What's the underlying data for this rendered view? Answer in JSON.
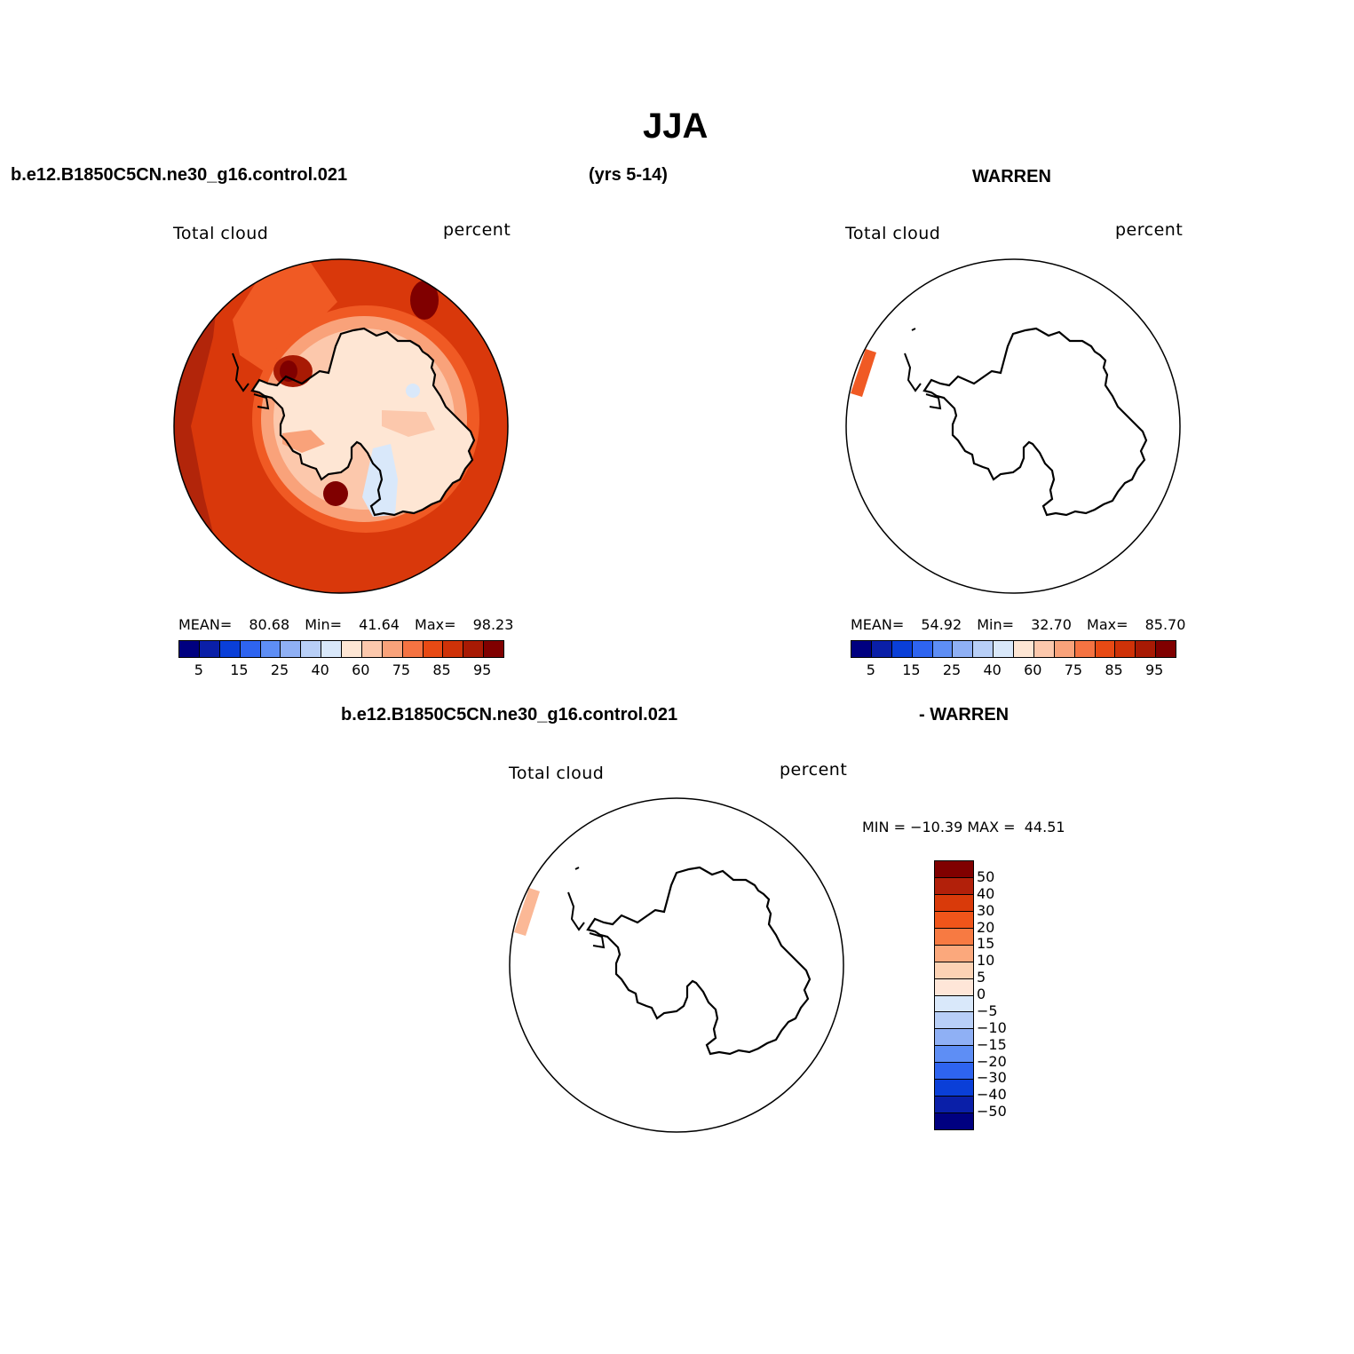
{
  "title": "JJA",
  "header": {
    "case": "b.e12.B1850C5CN.ne30_g16.control.021",
    "years": "(yrs 5-14)",
    "obs": "WARREN"
  },
  "panels": {
    "model": {
      "variable": "Total cloud",
      "units": "percent",
      "stats": {
        "mean_label": "MEAN=",
        "mean": "80.68",
        "min_label": "Min=",
        "min": "41.64",
        "max_label": "Max=",
        "max": "98.23"
      }
    },
    "obs": {
      "variable": "Total cloud",
      "units": "percent",
      "stats": {
        "mean_label": "MEAN=",
        "mean": "54.92",
        "min_label": "Min=",
        "min": "32.70",
        "max_label": "Max=",
        "max": "85.70"
      }
    },
    "diff": {
      "case": "b.e12.B1850C5CN.ne30_g16.control.021",
      "obs": "- WARREN",
      "variable": "Total cloud",
      "units": "percent",
      "range_text": "MIN = −10.39 MAX =  44.51"
    }
  },
  "colorbar_abs": {
    "colors": [
      "#000080",
      "#0a1fa8",
      "#0a3fd8",
      "#2e64f0",
      "#5e8ef5",
      "#8fb0f5",
      "#b8cff7",
      "#d9e8fa",
      "#fee6d4",
      "#fcc8ac",
      "#f9a27a",
      "#f57342",
      "#e84a14",
      "#cf3208",
      "#a81a04",
      "#800000"
    ],
    "tick_labels": [
      "5",
      "15",
      "25",
      "40",
      "60",
      "75",
      "85",
      "95"
    ]
  },
  "colorbar_diff": {
    "colors_top_to_bottom": [
      "#800000",
      "#b2200a",
      "#d93a0a",
      "#f0551a",
      "#f77a42",
      "#fba87c",
      "#fcd2b4",
      "#fee6d8",
      "#d9e8fa",
      "#b8cff7",
      "#8fb0f5",
      "#5e8ef5",
      "#2e64f0",
      "#0a3fd8",
      "#0a1fa8",
      "#000080"
    ],
    "tick_labels": [
      "50",
      "40",
      "30",
      "20",
      "15",
      "10",
      "5",
      "0",
      "−5",
      "−10",
      "−15",
      "−20",
      "−30",
      "−40",
      "−50"
    ]
  },
  "map_colors": {
    "ocean_high": "#b2250a",
    "ocean_mid": "#d9380b",
    "band_1": "#f05a24",
    "band_2": "#f9a27a",
    "band_3": "#fcc8ac",
    "interior": "#fee6d4",
    "low_spot": "#d9e8fa",
    "max_spot": "#800000",
    "obs_strip": "#f05a24",
    "diff_strip": "#fbb896"
  }
}
